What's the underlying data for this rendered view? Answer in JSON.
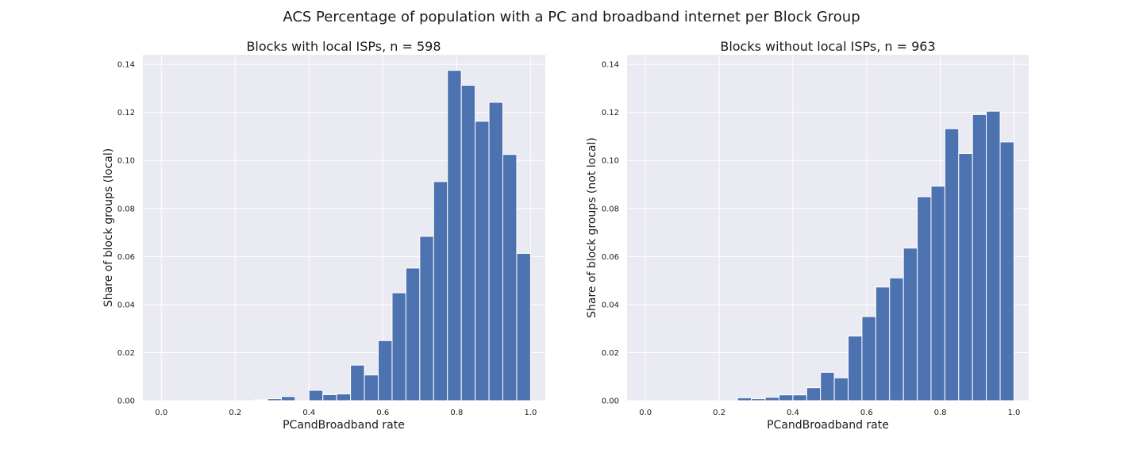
{
  "figure": {
    "title": "ACS Percentage of population with a PC and broadband internet per Block Group"
  },
  "colors": {
    "bar": "#4c72b0",
    "plot_background": "#eaeaf2",
    "grid": "#ffffff",
    "figure_background": "#ffffff"
  },
  "chart_data": [
    {
      "type": "bar",
      "title": "Blocks with local ISPs, n = 598",
      "xlabel": "PCandBroadband rate",
      "ylabel": "Share of block groups (local)",
      "xlim": [
        -0.05,
        1.04
      ],
      "ylim": [
        0,
        0.144
      ],
      "xticks": [
        "0.0",
        "0.2",
        "0.4",
        "0.6",
        "0.8",
        "1.0"
      ],
      "yticks": [
        "0.00",
        "0.02",
        "0.04",
        "0.06",
        "0.08",
        "0.10",
        "0.12",
        "0.14"
      ],
      "grid": true,
      "bin_width": 0.0375,
      "bin_starts": [
        0.25,
        0.2875,
        0.325,
        0.3625,
        0.4,
        0.4375,
        0.475,
        0.5125,
        0.55,
        0.5875,
        0.625,
        0.6625,
        0.7,
        0.7375,
        0.775,
        0.8125,
        0.85,
        0.8875,
        0.925,
        0.9625
      ],
      "values": [
        0.0003,
        0.0008,
        0.0017,
        0.0,
        0.0043,
        0.0025,
        0.0028,
        0.0148,
        0.0107,
        0.025,
        0.0449,
        0.0552,
        0.0684,
        0.0912,
        0.1375,
        0.1313,
        0.1163,
        0.1242,
        0.1025,
        0.0613
      ]
    },
    {
      "type": "bar",
      "title": "Blocks without local ISPs, n = 963",
      "xlabel": "PCandBroadband rate",
      "ylabel": "Share of block groups (not local)",
      "xlim": [
        -0.05,
        1.04
      ],
      "ylim": [
        0,
        0.144
      ],
      "xticks": [
        "0.0",
        "0.2",
        "0.4",
        "0.6",
        "0.8",
        "1.0"
      ],
      "yticks": [
        "0.00",
        "0.02",
        "0.04",
        "0.06",
        "0.08",
        "0.10",
        "0.12",
        "0.14"
      ],
      "grid": true,
      "bin_width": 0.0375,
      "bin_starts": [
        0.25,
        0.2875,
        0.325,
        0.3625,
        0.4,
        0.4375,
        0.475,
        0.5125,
        0.55,
        0.5875,
        0.625,
        0.6625,
        0.7,
        0.7375,
        0.775,
        0.8125,
        0.85,
        0.8875,
        0.925,
        0.9625
      ],
      "values": [
        0.0012,
        0.0008,
        0.0014,
        0.0024,
        0.0024,
        0.0054,
        0.0118,
        0.0095,
        0.0269,
        0.035,
        0.0473,
        0.0511,
        0.0635,
        0.0849,
        0.0893,
        0.1132,
        0.1029,
        0.1191,
        0.1205,
        0.1077
      ]
    }
  ]
}
